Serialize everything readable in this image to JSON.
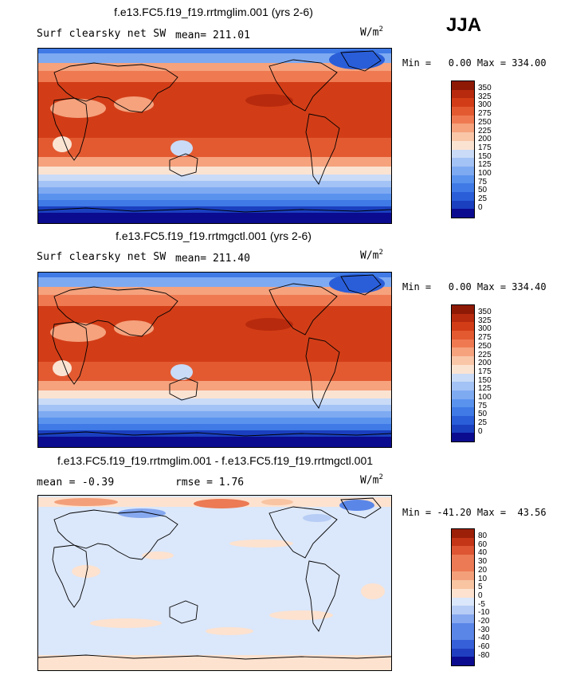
{
  "season": "JJA",
  "colors": {
    "temp": [
      "#0b0b8f",
      "#1a3fbf",
      "#2a5ed9",
      "#3f7ae6",
      "#5a93ee",
      "#7eaaf2",
      "#a3c2f5",
      "#c9dbf7",
      "#e6eefb",
      "#fbe3d2",
      "#f9c6a8",
      "#f5a27d",
      "#ef7a52",
      "#e35a31",
      "#d23d17",
      "#b82a0d",
      "#8e1a06"
    ],
    "diff": [
      "#0b0b8f",
      "#1f3fc0",
      "#3660d8",
      "#5a86e8",
      "#86a8ef",
      "#b7cdf5",
      "#dbe7fa",
      "#fde2cf",
      "#f8c4a2",
      "#f3a07a",
      "#eb7a55",
      "#dd5533",
      "#c43517",
      "#9c1f08"
    ]
  },
  "panels": [
    {
      "title": "f.e13.FC5.f19_f19.rrtmglim.001 (yrs 2-6)",
      "left": "Surf clearsky net SW",
      "middle": "mean= 211.01",
      "units": "W/m",
      "units_sup": "2",
      "minmax": "Min =   0.00 Max = 334.00",
      "labels": [
        "350",
        "325",
        "300",
        "275",
        "250",
        "225",
        "200",
        "175",
        "150",
        "125",
        "100",
        "75",
        "50",
        "25",
        "0"
      ]
    },
    {
      "title": "f.e13.FC5.f19_f19.rrtmgctl.001 (yrs 2-6)",
      "left": "Surf clearsky net SW",
      "middle": "mean= 211.40",
      "units": "W/m",
      "units_sup": "2",
      "minmax": "Min =   0.00 Max = 334.40",
      "labels": [
        "350",
        "325",
        "300",
        "275",
        "250",
        "225",
        "200",
        "175",
        "150",
        "125",
        "100",
        "75",
        "50",
        "25",
        "0"
      ]
    },
    {
      "title": "f.e13.FC5.f19_f19.rrtmglim.001 - f.e13.FC5.f19_f19.rrtmgctl.001",
      "left": "mean =  -0.39",
      "middle": "rmse =    1.76",
      "units": "W/m",
      "units_sup": "2",
      "minmax": "Min = -41.20 Max =  43.56",
      "labels": [
        "80",
        "60",
        "40",
        "30",
        "20",
        "10",
        "5",
        "0",
        "-5",
        "-10",
        "-20",
        "-30",
        "-40",
        "-60",
        "-80"
      ]
    }
  ]
}
